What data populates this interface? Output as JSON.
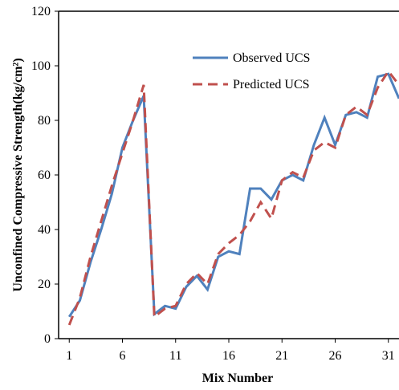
{
  "chart_data": {
    "type": "line",
    "x_label": "Mix Number",
    "y_label": "Unconfined Compressive Strength(kg/cm²)",
    "x": [
      1,
      2,
      3,
      4,
      5,
      6,
      7,
      8,
      9,
      10,
      11,
      12,
      13,
      14,
      15,
      16,
      17,
      18,
      19,
      20,
      21,
      22,
      23,
      24,
      25,
      26,
      27,
      28,
      29,
      30,
      31,
      32
    ],
    "series": [
      {
        "name": "Observed UCS",
        "color": "#4f81bd",
        "dashed": false,
        "values": [
          8,
          14,
          28,
          40,
          53,
          70,
          80,
          89,
          9,
          12,
          11,
          19,
          23,
          18,
          30,
          32,
          31,
          55,
          55,
          51,
          58,
          60,
          58,
          71,
          81,
          71,
          82,
          83,
          81,
          96,
          97,
          88
        ]
      },
      {
        "name": "Predicted UCS",
        "color": "#c0504d",
        "dashed": true,
        "values": [
          5,
          15,
          30,
          43,
          56,
          68,
          80,
          93,
          8,
          11,
          12,
          20,
          24,
          20,
          31,
          35,
          38,
          43,
          50,
          44,
          58,
          61,
          59,
          69,
          72,
          70,
          82,
          85,
          82,
          92,
          98,
          93
        ]
      }
    ],
    "xlim": [
      0,
      32
    ],
    "xticks": [
      1,
      6,
      11,
      16,
      21,
      26,
      31
    ],
    "ylim": [
      0,
      120
    ],
    "yticks": [
      0,
      20,
      40,
      60,
      80,
      100,
      120
    ],
    "legend": "upper-center"
  }
}
